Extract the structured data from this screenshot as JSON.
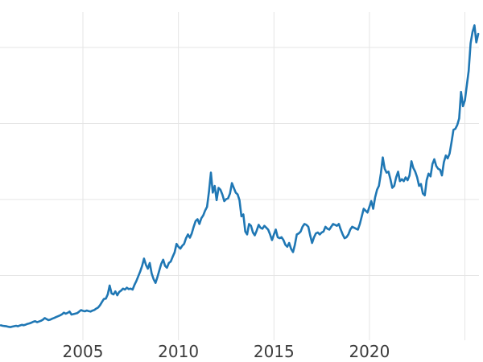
{
  "page": {
    "background": "#ffffff"
  },
  "chart_data": {
    "type": "line",
    "title": "",
    "xlabel": "",
    "ylabel": "",
    "grid": true,
    "legend_position": "none",
    "y_tick_labels_visible": false,
    "x_ticks": [
      {
        "value": 2005,
        "label": "2005"
      },
      {
        "value": 2010,
        "label": "2010"
      },
      {
        "value": 2015,
        "label": "2015"
      },
      {
        "value": 2020,
        "label": "2020"
      },
      {
        "value": 2025,
        "label": ""
      }
    ],
    "y_gridlines": [
      800,
      1600,
      2400,
      3200
    ],
    "x_range": [
      2000.658,
      2025.738
    ],
    "y_range": [
      118.5,
      3572.5
    ],
    "colors": {
      "line": "#1f77b4",
      "grid": "#e5e5e5",
      "tick_label": "#3d3d3d",
      "background": "#ffffff"
    },
    "series": [
      {
        "name": "series-1",
        "color": "#1f77b4",
        "x_start": 2000.7,
        "x_step": 0.1,
        "values": [
          276,
          271,
          268,
          266,
          261,
          257,
          262,
          267,
          271,
          266,
          274,
          281,
          277,
          283,
          291,
          296,
          304,
          313,
          319,
          309,
          316,
          323,
          334,
          352,
          341,
          331,
          337,
          346,
          354,
          363,
          372,
          380,
          392,
          409,
          399,
          407,
          421,
          389,
          394,
          399,
          404,
          420,
          436,
          428,
          423,
          432,
          426,
          421,
          431,
          438,
          452,
          464,
          489,
          522,
          554,
          557,
          603,
          695,
          612,
          601,
          633,
          592,
          627,
          642,
          662,
          652,
          672,
          657,
          662,
          652,
          703,
          742,
          793,
          843,
          903,
          978,
          912,
          872,
          932,
          822,
          762,
          722,
          782,
          853,
          923,
          967,
          902,
          882,
          932,
          947,
          997,
          1043,
          1133,
          1103,
          1083,
          1113,
          1133,
          1193,
          1233,
          1198,
          1243,
          1313,
          1373,
          1393,
          1343,
          1403,
          1433,
          1483,
          1523,
          1683,
          1883,
          1673,
          1743,
          1593,
          1723,
          1703,
          1653,
          1583,
          1603,
          1613,
          1663,
          1773,
          1723,
          1673,
          1653,
          1593,
          1423,
          1443,
          1263,
          1233,
          1343,
          1323,
          1253,
          1223,
          1273,
          1333,
          1303,
          1293,
          1323,
          1303,
          1283,
          1233,
          1173,
          1233,
          1283,
          1203,
          1193,
          1203,
          1173,
          1123,
          1103,
          1143,
          1081,
          1046,
          1123,
          1233,
          1243,
          1263,
          1313,
          1343,
          1333,
          1313,
          1223,
          1143,
          1203,
          1243,
          1253,
          1233,
          1253,
          1263,
          1313,
          1293,
          1283,
          1313,
          1343,
          1333,
          1323,
          1343,
          1283,
          1233,
          1193,
          1203,
          1233,
          1283,
          1313,
          1303,
          1293,
          1283,
          1343,
          1423,
          1503,
          1483,
          1463,
          1523,
          1583,
          1503,
          1623,
          1703,
          1743,
          1873,
          2043,
          1923,
          1883,
          1893,
          1813,
          1723,
          1743,
          1833,
          1893,
          1793,
          1813,
          1793,
          1833,
          1803,
          1853,
          2003,
          1933,
          1893,
          1833,
          1743,
          1763,
          1663,
          1643,
          1803,
          1873,
          1843,
          1973,
          2023,
          1953,
          1923,
          1913,
          1853,
          1993,
          2063,
          2033,
          2083,
          2203,
          2333,
          2343,
          2383,
          2453,
          2733,
          2583,
          2643,
          2803,
          2953,
          3243,
          3363,
          3433,
          3253,
          3343
        ]
      }
    ]
  }
}
